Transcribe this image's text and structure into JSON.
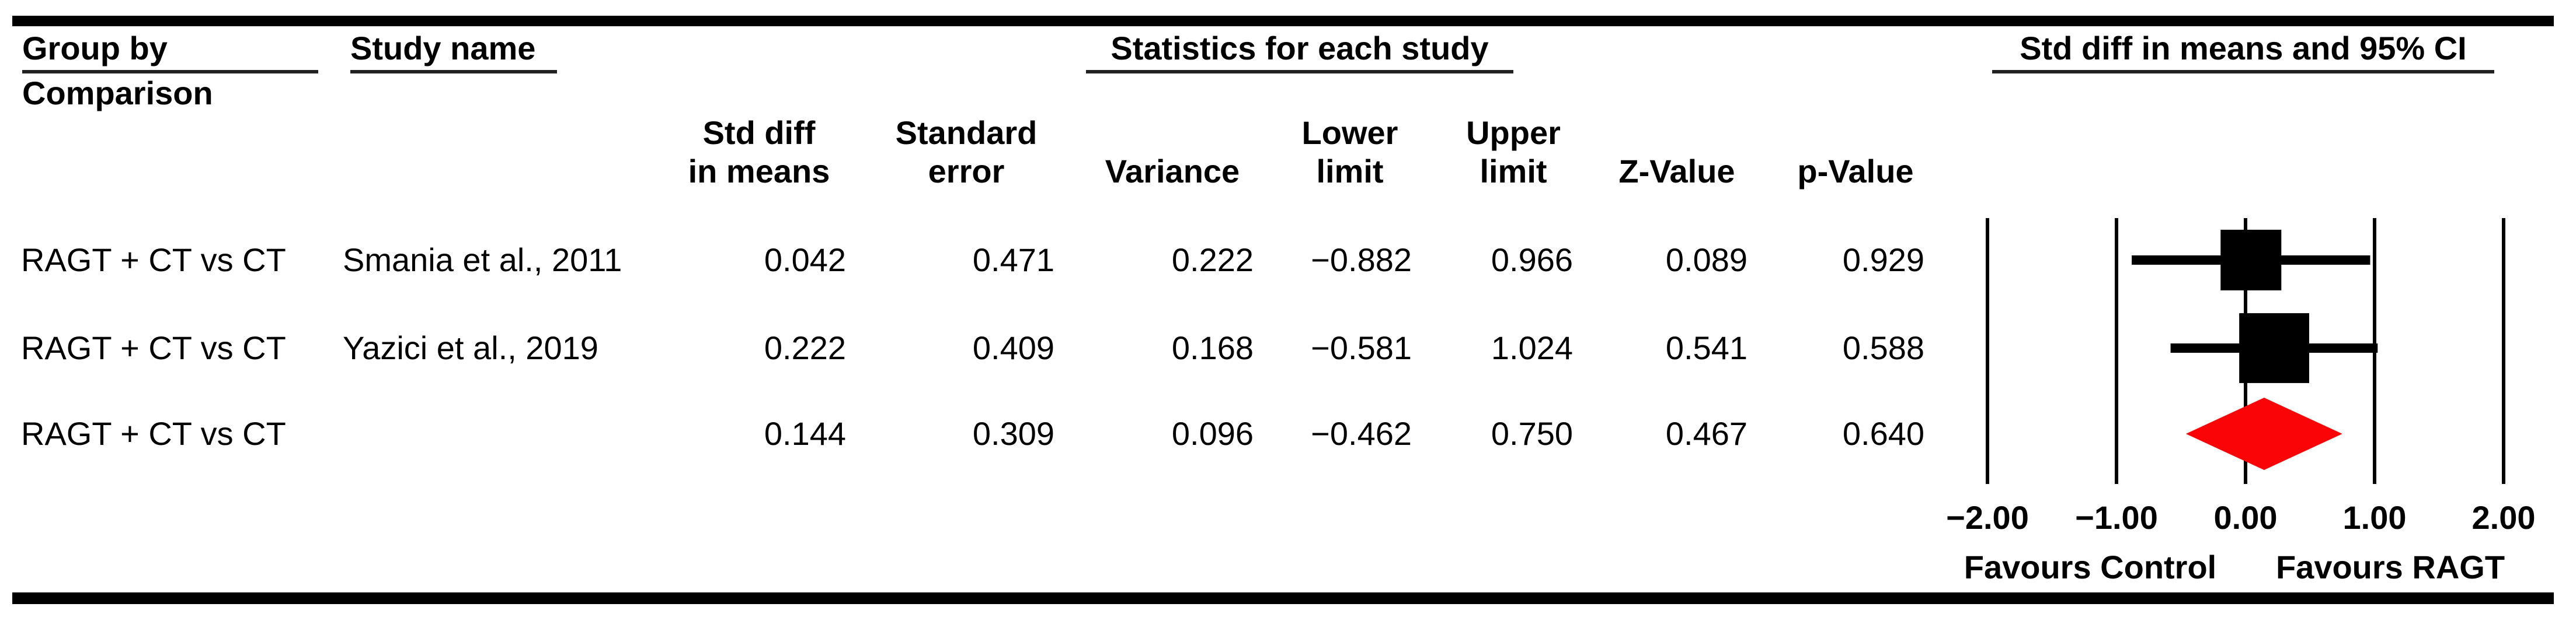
{
  "figure": {
    "header": {
      "group_by": [
        "Group by",
        "Comparison"
      ],
      "study_name": "Study name",
      "stats_title": "Statistics for each study",
      "plot_title": "Std diff in means and 95% CI",
      "stat_columns": [
        [
          "Std diff",
          "in means"
        ],
        [
          "Standard",
          "error"
        ],
        [
          "",
          "Variance"
        ],
        [
          "Lower",
          "limit"
        ],
        [
          "Upper",
          "limit"
        ],
        [
          "",
          "Z-Value"
        ],
        [
          "",
          "p-Value"
        ]
      ]
    }
  },
  "chart_data": {
    "type": "forest",
    "title": "Std diff in means and 95% CI",
    "stats_title": "Statistics for each study",
    "xlim": [
      -2,
      2
    ],
    "x_ticks": [
      -2,
      -1,
      0,
      1,
      2
    ],
    "x_tick_labels": [
      "−2.00",
      "−1.00",
      "0.00",
      "1.00",
      "2.00"
    ],
    "footer_left": "Favours Control",
    "footer_right": "Favours RAGT",
    "colors": {
      "study_marker": "#000000",
      "ci_line": "#000000",
      "summary_marker": "#fa0408",
      "gridline": "#000000"
    },
    "studies": [
      {
        "group": "RAGT + CT vs CT",
        "study": "Smania et al., 2011",
        "std_diff": 0.042,
        "std_err": 0.471,
        "variance": 0.222,
        "lower": -0.882,
        "upper": 0.966,
        "z": 0.089,
        "p": 0.929,
        "summary": false
      },
      {
        "group": "RAGT + CT vs CT",
        "study": "Yazici et al., 2019",
        "std_diff": 0.222,
        "std_err": 0.409,
        "variance": 0.168,
        "lower": -0.581,
        "upper": 1.024,
        "z": 0.541,
        "p": 0.588,
        "summary": false
      },
      {
        "group": "RAGT + CT vs CT",
        "study": "",
        "std_diff": 0.144,
        "std_err": 0.309,
        "variance": 0.096,
        "lower": -0.462,
        "upper": 0.75,
        "z": 0.467,
        "p": 0.64,
        "summary": true
      }
    ]
  }
}
